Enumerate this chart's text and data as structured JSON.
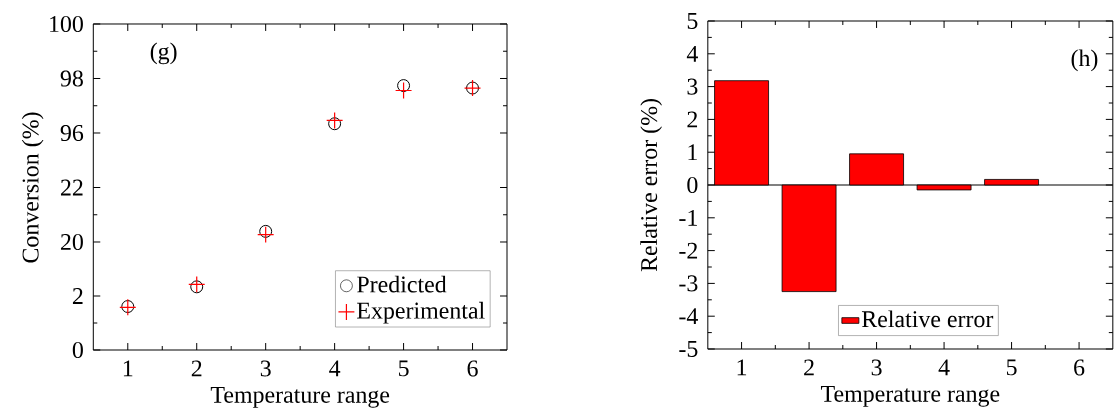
{
  "chart_data": [
    {
      "type": "scatter",
      "xlim": [
        0.5,
        6.5
      ],
      "xticks": [
        1,
        2,
        3,
        4,
        5,
        6
      ],
      "ylim": [
        96,
        100
      ],
      "yticks": [
        96,
        98,
        100
      ],
      "tick_labels": "y",
      "annotations": [
        "(g)"
      ],
      "series": [
        {
          "color": "#000000",
          "marker": "circle",
          "x": [
            4,
            5,
            6
          ],
          "values": [
            96.34,
            97.74,
            97.65
          ]
        },
        {
          "color": "#ff0000",
          "marker": "cross",
          "x": [
            4,
            5,
            6
          ],
          "values": [
            96.46,
            97.56,
            97.65
          ]
        }
      ]
    },
    {
      "type": "scatter",
      "xlim": [
        0.5,
        6.5
      ],
      "xticks": [
        1,
        2,
        3,
        4,
        5,
        6
      ],
      "ylim": [
        20,
        24
      ],
      "yticks": [
        20,
        22
      ],
      "tick_labels": "y",
      "ylabel": "Conversion (%)",
      "series": [
        {
          "color": "#000000",
          "marker": "circle",
          "x": [
            3
          ],
          "values": [
            20.39
          ]
        },
        {
          "color": "#ff0000",
          "marker": "cross",
          "x": [
            3
          ],
          "values": [
            20.27
          ]
        }
      ]
    },
    {
      "type": "scatter",
      "xlim": [
        0.5,
        6.5
      ],
      "xticks": [
        1,
        2,
        3,
        4,
        5,
        6
      ],
      "ylim": [
        0,
        4
      ],
      "yticks": [
        0,
        2
      ],
      "xlabel": "Temperature range",
      "legend": "bottom right",
      "series": [
        {
          "name": "Predicted",
          "color": "#000000",
          "marker": "circle",
          "x": [
            1,
            2
          ],
          "values": [
            1.61,
            2.34
          ]
        },
        {
          "name": "Experimental",
          "color": "#ff0000",
          "marker": "cross",
          "x": [
            1,
            2
          ],
          "values": [
            1.58,
            2.43
          ]
        }
      ]
    },
    {
      "type": "bar",
      "xlim": [
        0.5,
        6.5
      ],
      "xticks": [
        1,
        2,
        3,
        4,
        5,
        6
      ],
      "ylim": [
        -5,
        5
      ],
      "yticks": [
        -5,
        -4,
        -3,
        -2,
        -1,
        0,
        1,
        2,
        3,
        4,
        5
      ],
      "xlabel": "Temperature range",
      "ylabel": "Relative error (%)",
      "legend": "bottom",
      "annotations": [
        "(h)"
      ],
      "ref_lines": [
        {
          "axis": "y",
          "value": 0
        }
      ],
      "series": [
        {
          "name": "Relative error",
          "color": "#ff0000",
          "x": [
            1,
            2,
            3,
            4,
            5
          ],
          "values": [
            3.18,
            -3.25,
            0.95,
            -0.15,
            0.17
          ]
        }
      ]
    }
  ]
}
